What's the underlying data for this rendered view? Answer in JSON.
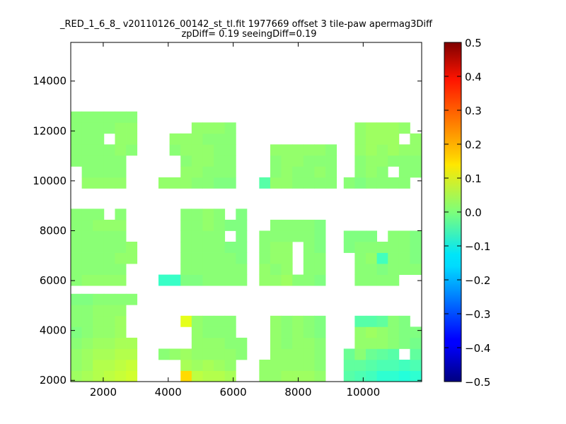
{
  "chart_data": {
    "type": "heatmap",
    "title": "_RED_1_6_8_ v20110126_00142_st_tl.fit 1977669 offset 3 tile-paw apermag3Diff",
    "subtitle": "zpDiff= 0.19 seeingDiff=0.19",
    "xlabel": "",
    "ylabel": "",
    "xlim": [
      1000,
      11800
    ],
    "ylim": [
      1950,
      15550
    ],
    "xticks": [
      2000,
      4000,
      6000,
      8000,
      10000
    ],
    "yticks": [
      2000,
      4000,
      6000,
      8000,
      10000,
      12000,
      14000
    ],
    "colorbar": {
      "colormap": "jet",
      "range": [
        -0.5,
        0.5
      ],
      "ticks": [
        "0.5",
        "0.4",
        "0.3",
        "0.2",
        "0.1",
        "0.0",
        "−0.1",
        "−0.2",
        "−0.3",
        "−0.4",
        "−0.5"
      ]
    },
    "cell_size": [
      340,
      440
    ],
    "tile_columns": [
      1000,
      3700,
      6800,
      9400
    ],
    "tile_rows": [
      1950,
      5800,
      9700,
      13600
    ],
    "tiles": [
      [
        [
          0.03,
          0.04,
          0.05,
          0.06,
          0.07,
          0.08
        ],
        [
          0.02,
          0.03,
          0.05,
          0.05,
          0.06,
          0.07
        ],
        [
          0.02,
          0.03,
          0.04,
          0.04,
          0.05,
          0.05
        ],
        [
          0.01,
          0.02,
          0.03,
          0.03,
          0.04,
          0.04
        ],
        [
          0.0,
          0.01,
          0.02,
          0.02,
          0.03,
          null
        ],
        [
          0.01,
          0.01,
          0.02,
          0.02,
          0.03,
          null
        ],
        [
          0.01,
          0.01,
          0.02,
          0.02,
          0.02,
          null
        ],
        [
          0.0,
          0.0,
          0.01,
          0.01,
          0.01,
          0.01
        ]
      ],
      [
        [
          null,
          null,
          0.16,
          0.06,
          0.05,
          0.05,
          0.04,
          null
        ],
        [
          null,
          null,
          0.04,
          0.03,
          0.04,
          0.03,
          0.02,
          null
        ],
        [
          0.01,
          0.02,
          0.03,
          0.02,
          0.02,
          0.02,
          0.02,
          0.01
        ],
        [
          null,
          null,
          null,
          0.02,
          0.02,
          0.02,
          0.01,
          0.01
        ],
        [
          null,
          null,
          null,
          0.02,
          0.01,
          0.01,
          0.01,
          null
        ],
        [
          null,
          null,
          0.1,
          0.02,
          0.01,
          0.01,
          0.01,
          null
        ],
        [
          null,
          null,
          null,
          null,
          null,
          null,
          null,
          null
        ],
        [
          null,
          null,
          null,
          null,
          null,
          null,
          null,
          null
        ]
      ],
      [
        [
          0.02,
          0.02,
          0.03,
          0.03,
          0.03,
          0.02,
          null
        ],
        [
          0.02,
          0.02,
          0.02,
          0.02,
          0.02,
          0.01,
          null
        ],
        [
          null,
          0.02,
          0.02,
          0.02,
          0.02,
          0.01,
          null
        ],
        [
          null,
          0.02,
          0.01,
          0.02,
          0.02,
          0.01,
          null
        ],
        [
          null,
          0.02,
          0.01,
          0.02,
          0.01,
          0.0,
          null
        ],
        [
          null,
          0.02,
          0.01,
          0.02,
          0.01,
          0.0,
          null
        ],
        [
          null,
          null,
          null,
          null,
          null,
          null,
          null
        ],
        [
          null,
          null,
          null,
          null,
          null,
          null,
          null
        ]
      ],
      [
        [
          -0.04,
          -0.05,
          -0.06,
          -0.08,
          -0.08,
          -0.09,
          -0.08
        ],
        [
          -0.03,
          -0.03,
          -0.04,
          -0.05,
          -0.05,
          -0.06,
          -0.05
        ],
        [
          -0.02,
          0.01,
          -0.02,
          -0.03,
          -0.04,
          null,
          -0.03
        ],
        [
          null,
          0.02,
          0.02,
          0.02,
          0.01,
          0.0,
          -0.01
        ],
        [
          null,
          0.02,
          0.03,
          0.02,
          0.01,
          0.0,
          0.0
        ],
        [
          null,
          -0.04,
          -0.04,
          -0.03,
          0.01,
          0.0,
          null
        ],
        [
          null,
          null,
          null,
          null,
          null,
          null,
          null
        ],
        [
          null,
          null,
          null,
          null,
          null,
          null,
          null
        ]
      ],
      [
        [
          0.01,
          0.02,
          0.02,
          0.02,
          0.02,
          null
        ],
        [
          0.01,
          0.01,
          0.01,
          0.01,
          0.01,
          null
        ],
        [
          0.01,
          0.01,
          0.01,
          0.01,
          0.02,
          0.02
        ],
        [
          0.01,
          0.01,
          0.01,
          0.01,
          0.01,
          0.02
        ],
        [
          0.01,
          0.01,
          0.01,
          0.01,
          0.01,
          null
        ],
        [
          0.01,
          0.01,
          0.02,
          0.02,
          0.02,
          null
        ],
        [
          0.01,
          0.01,
          0.01,
          null,
          0.01,
          null
        ],
        [
          null,
          null,
          null,
          null,
          null,
          null
        ]
      ],
      [
        [
          -0.07,
          -0.07,
          0.0,
          0.0,
          0.01,
          0.01,
          0.01,
          0.01
        ],
        [
          null,
          null,
          0.01,
          0.01,
          0.01,
          0.01,
          0.01,
          0.01
        ],
        [
          null,
          null,
          0.01,
          0.01,
          0.01,
          0.01,
          0.01,
          0.0
        ],
        [
          null,
          null,
          0.01,
          0.01,
          0.01,
          0.01,
          0.0,
          0.0
        ],
        [
          null,
          null,
          0.01,
          0.01,
          0.01,
          0.01,
          null,
          0.0
        ],
        [
          null,
          null,
          0.01,
          0.01,
          0.02,
          0.01,
          0.0,
          0.0
        ],
        [
          null,
          null,
          0.01,
          0.01,
          0.02,
          0.01,
          null,
          0.0
        ],
        [
          null,
          null,
          null,
          null,
          null,
          null,
          null,
          null
        ]
      ],
      [
        [
          0.02,
          0.02,
          0.03,
          0.01,
          0.01,
          0.0
        ],
        [
          0.02,
          0.01,
          0.02,
          null,
          0.01,
          0.01
        ],
        [
          0.01,
          0.02,
          0.02,
          null,
          0.01,
          0.01
        ],
        [
          0.01,
          0.02,
          0.02,
          null,
          0.01,
          0.0
        ],
        [
          0.01,
          0.01,
          0.01,
          0.01,
          0.01,
          0.0
        ],
        [
          null,
          0.01,
          0.01,
          0.01,
          0.01,
          0.0
        ],
        [
          null,
          null,
          null,
          null,
          null,
          null
        ],
        [
          null,
          null,
          null,
          null,
          null,
          null
        ]
      ],
      [
        [
          null,
          0.01,
          0.01,
          0.01,
          0.01,
          null,
          null
        ],
        [
          null,
          0.01,
          0.01,
          0.0,
          0.01,
          0.01,
          0.01
        ],
        [
          null,
          0.01,
          0.02,
          -0.06,
          0.01,
          0.01,
          0.0
        ],
        [
          0.0,
          0.01,
          0.01,
          0.01,
          0.01,
          0.01,
          0.0
        ],
        [
          0.0,
          0.0,
          0.0,
          null,
          0.01,
          0.01,
          0.0
        ],
        [
          null,
          null,
          null,
          null,
          null,
          null,
          null
        ],
        [
          null,
          null,
          null,
          null,
          null,
          null,
          null
        ],
        [
          null,
          null,
          null,
          null,
          null,
          null,
          null
        ]
      ],
      [
        [
          null,
          0.02,
          0.02,
          0.02,
          0.02,
          null
        ],
        [
          null,
          0.01,
          0.01,
          0.01,
          0.01,
          null
        ],
        [
          0.01,
          0.01,
          0.01,
          0.01,
          0.01,
          null
        ],
        [
          0.01,
          0.01,
          0.01,
          0.01,
          0.02,
          0.01
        ],
        [
          0.01,
          0.01,
          0.01,
          null,
          0.02,
          0.02
        ],
        [
          0.01,
          0.01,
          0.01,
          0.01,
          0.02,
          0.02
        ],
        [
          0.01,
          0.01,
          0.01,
          0.01,
          0.01,
          0.01
        ],
        [
          null,
          null,
          null,
          null,
          null,
          null
        ]
      ],
      [
        [
          0.02,
          0.02,
          0.02,
          0.01,
          0.01,
          0.0,
          0.0,
          null
        ],
        [
          null,
          null,
          0.02,
          0.02,
          0.01,
          0.01,
          0.01,
          null
        ],
        [
          null,
          null,
          0.01,
          0.02,
          0.02,
          0.01,
          0.01,
          null
        ],
        [
          null,
          0.01,
          0.02,
          0.02,
          0.02,
          0.01,
          0.01,
          null
        ],
        [
          null,
          0.02,
          0.02,
          0.02,
          0.01,
          0.01,
          0.01,
          null
        ],
        [
          null,
          null,
          null,
          0.02,
          0.02,
          0.02,
          0.01,
          null
        ],
        [
          null,
          null,
          null,
          null,
          null,
          null,
          null,
          null
        ],
        [
          null,
          null,
          null,
          null,
          null,
          null,
          null,
          null
        ]
      ],
      [
        [
          -0.04,
          0.02,
          0.02,
          0.01,
          0.01,
          0.01,
          0.01
        ],
        [
          null,
          0.01,
          0.02,
          0.01,
          0.01,
          0.02,
          0.01
        ],
        [
          null,
          0.01,
          0.02,
          0.02,
          0.01,
          0.01,
          0.01
        ],
        [
          null,
          0.02,
          0.02,
          0.02,
          0.02,
          0.02,
          0.01
        ],
        [
          null,
          null,
          null,
          null,
          null,
          null,
          null
        ],
        [
          null,
          null,
          null,
          null,
          null,
          null,
          null
        ],
        [
          null,
          null,
          null,
          null,
          null,
          null,
          null
        ],
        [
          null,
          null,
          null,
          null,
          null,
          null,
          null
        ]
      ],
      [
        [
          0.01,
          0.0,
          0.01,
          0.01,
          0.01,
          0.01,
          null
        ],
        [
          null,
          0.01,
          0.02,
          0.01,
          null,
          0.01,
          0.01
        ],
        [
          null,
          0.01,
          0.02,
          0.02,
          0.01,
          0.01,
          0.01
        ],
        [
          null,
          0.02,
          0.03,
          0.02,
          0.03,
          0.02,
          0.02
        ],
        [
          null,
          0.02,
          0.03,
          0.03,
          0.03,
          null,
          0.02
        ],
        [
          null,
          0.02,
          0.03,
          0.03,
          0.03,
          0.02,
          null
        ],
        [
          null,
          null,
          null,
          null,
          null,
          null,
          null
        ],
        [
          null,
          null,
          null,
          null,
          null,
          null,
          null
        ]
      ]
    ]
  }
}
